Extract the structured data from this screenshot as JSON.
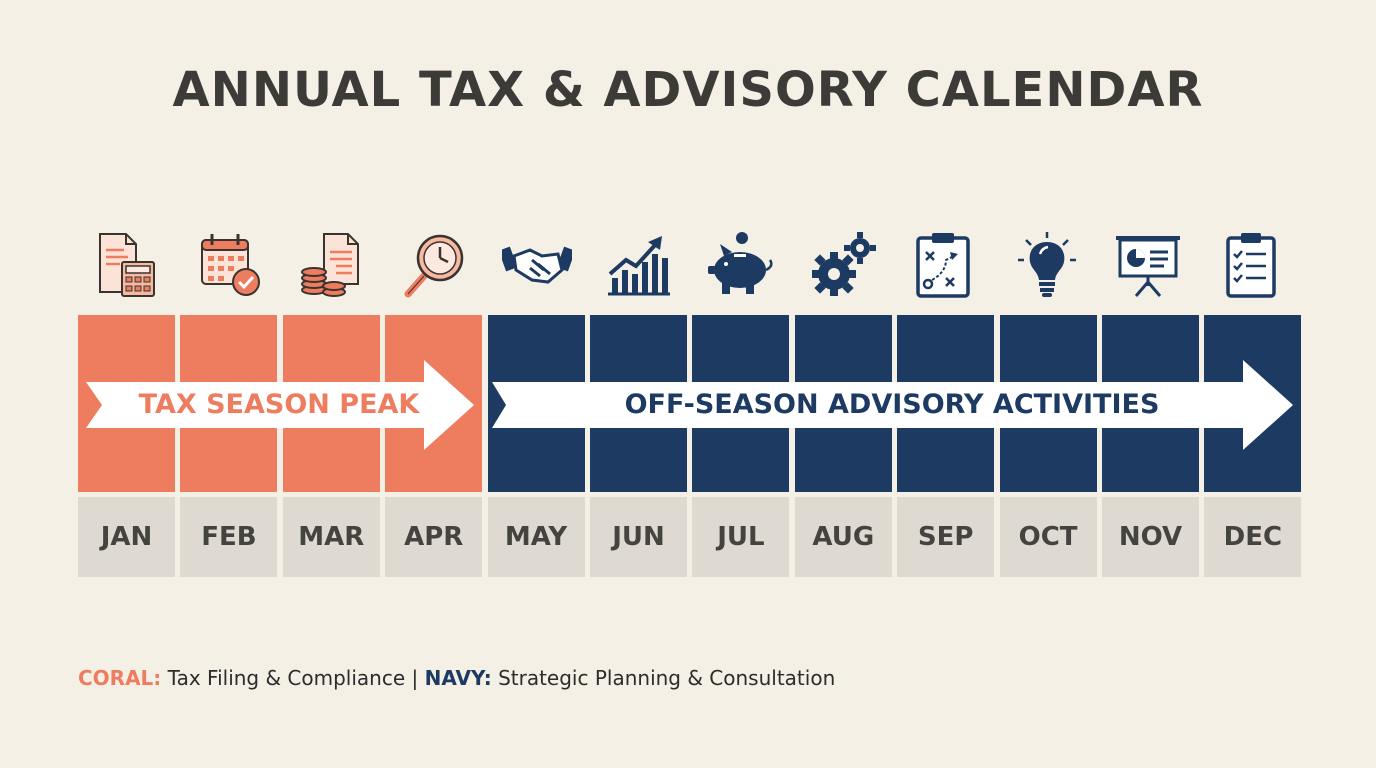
{
  "title": "ANNUAL TAX & ADVISORY CALENDAR",
  "colors": {
    "coral": "#ee7d5f",
    "navy": "#1d3a63",
    "background": "#f4f0e6",
    "month_bg": "#dedad1"
  },
  "months": [
    "JAN",
    "FEB",
    "MAR",
    "APR",
    "MAY",
    "JUN",
    "JUL",
    "AUG",
    "SEP",
    "OCT",
    "NOV",
    "DEC"
  ],
  "icons": [
    "calculator-document-icon",
    "calendar-check-icon",
    "coins-document-icon",
    "magnifier-clock-icon",
    "handshake-icon",
    "growth-chart-icon",
    "piggy-bank-icon",
    "gears-icon",
    "strategy-board-icon",
    "lightbulb-icon",
    "presentation-icon",
    "checklist-icon"
  ],
  "phases": [
    {
      "label": "TAX SEASON PEAK",
      "color": "coral",
      "start_month": 0,
      "end_month": 3
    },
    {
      "label": "OFF-SEASON ADVISORY ACTIVITIES",
      "color": "navy",
      "start_month": 4,
      "end_month": 11
    }
  ],
  "legend": {
    "coral_key": "CORAL:",
    "coral_text": "Tax Filing & Compliance",
    "separator": "|",
    "navy_key": "NAVY:",
    "navy_text": "Strategic Planning & Consultation"
  }
}
